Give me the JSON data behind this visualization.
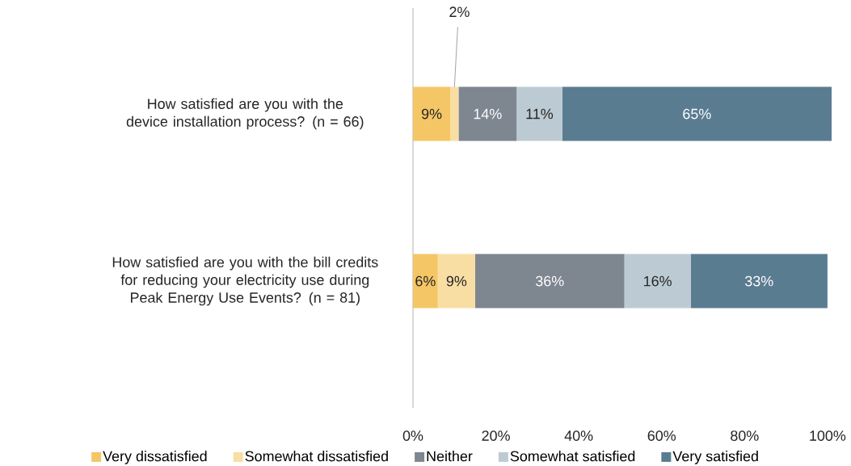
{
  "chart_data": {
    "type": "bar",
    "orientation": "horizontal",
    "stacked": true,
    "data_labels": true,
    "legend": "bottom",
    "grid": false,
    "categories": [
      "How satisfied are you with the device installation process? (n = 66)",
      "How satisfied are you with the bill credits for reducing your electricity use during Peak Energy Use Events? (n = 81)"
    ],
    "series": [
      {
        "name": "Very dissatisfied",
        "color": "#f5c666",
        "values": [
          9,
          6
        ],
        "value_labels": [
          "9%",
          "6%"
        ]
      },
      {
        "name": "Somewhat dissatisfied",
        "color": "#f9dea3",
        "values": [
          2,
          9
        ],
        "value_labels": [
          "2%",
          "9%"
        ]
      },
      {
        "name": "Neither",
        "color": "#7e8690",
        "values": [
          14,
          36
        ],
        "value_labels": [
          "14%",
          "36%"
        ]
      },
      {
        "name": "Somewhat satisfied",
        "color": "#bccbd3",
        "values": [
          11,
          16
        ],
        "value_labels": [
          "11%",
          "16%"
        ]
      },
      {
        "name": "Very satisfied",
        "color": "#5a7c91",
        "values": [
          65,
          33
        ],
        "value_labels": [
          "65%",
          "33%"
        ]
      }
    ],
    "xlim": [
      0,
      101
    ],
    "xticks": [
      {
        "value": 0,
        "label": "0%"
      },
      {
        "value": 20,
        "label": "20%"
      },
      {
        "value": 40,
        "label": "40%"
      },
      {
        "value": 60,
        "label": "60%"
      },
      {
        "value": 80,
        "label": "80%"
      },
      {
        "value": 100,
        "label": "100%"
      }
    ]
  }
}
